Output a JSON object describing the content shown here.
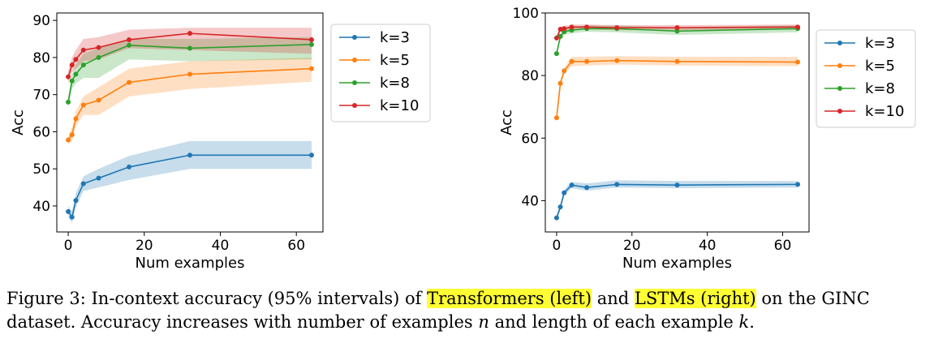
{
  "colors": {
    "k3": "#1f77b4",
    "k5": "#ff7f0e",
    "k8": "#2ca02c",
    "k10": "#d62728",
    "highlight": "#ffff33"
  },
  "chart_data": [
    {
      "type": "line",
      "title": "",
      "xlabel": "Num examples",
      "ylabel": "Acc",
      "xlim": [
        -3,
        67
      ],
      "ylim": [
        33,
        92
      ],
      "xticks": [
        0,
        20,
        40,
        60
      ],
      "yticks": [
        40,
        50,
        60,
        70,
        80,
        90
      ],
      "legend": "top-right",
      "grid": false,
      "series": [
        {
          "name": "k=3",
          "color": "#1f77b4",
          "x": [
            0,
            1,
            2,
            4,
            8,
            16,
            32,
            64
          ],
          "y": [
            38.5,
            37.0,
            41.5,
            46.0,
            47.5,
            50.5,
            53.7,
            53.7
          ],
          "lower": [
            37.0,
            35.5,
            39.5,
            44.0,
            45.0,
            47.0,
            50.0,
            50.0
          ],
          "upper": [
            40.0,
            38.5,
            43.5,
            48.0,
            50.0,
            53.5,
            57.5,
            57.5
          ]
        },
        {
          "name": "k=5",
          "color": "#ff7f0e",
          "x": [
            0,
            1,
            2,
            4,
            8,
            16,
            32,
            64
          ],
          "y": [
            57.8,
            59.2,
            63.5,
            67.2,
            68.5,
            73.3,
            75.5,
            77.0
          ],
          "lower": [
            56.5,
            57.5,
            61.5,
            64.5,
            64.5,
            69.5,
            71.5,
            73.5
          ],
          "upper": [
            59.0,
            61.0,
            65.5,
            69.5,
            72.0,
            77.0,
            79.0,
            80.0
          ]
        },
        {
          "name": "k=8",
          "color": "#2ca02c",
          "x": [
            0,
            1,
            2,
            4,
            8,
            16,
            32,
            64
          ],
          "y": [
            68.0,
            73.7,
            75.5,
            78.0,
            80.0,
            83.3,
            82.5,
            83.5
          ],
          "lower": [
            66.5,
            71.5,
            73.0,
            74.5,
            74.5,
            79.5,
            79.0,
            79.5
          ],
          "upper": [
            69.5,
            75.5,
            78.0,
            81.0,
            82.5,
            85.0,
            85.0,
            85.5
          ]
        },
        {
          "name": "k=10",
          "color": "#d62728",
          "x": [
            0,
            1,
            2,
            4,
            8,
            16,
            32,
            64
          ],
          "y": [
            74.8,
            78.0,
            79.5,
            82.0,
            82.7,
            84.8,
            86.5,
            84.8
          ],
          "lower": [
            73.0,
            76.0,
            77.0,
            79.0,
            79.5,
            82.5,
            82.0,
            81.0
          ],
          "upper": [
            76.5,
            80.0,
            82.0,
            85.0,
            85.5,
            87.5,
            88.0,
            88.0
          ]
        }
      ]
    },
    {
      "type": "line",
      "title": "",
      "xlabel": "Num examples",
      "ylabel": "Acc",
      "xlim": [
        -3,
        67
      ],
      "ylim": [
        30,
        100
      ],
      "xticks": [
        0,
        20,
        40,
        60
      ],
      "yticks": [
        40,
        60,
        80,
        100
      ],
      "legend": "right",
      "grid": false,
      "series": [
        {
          "name": "k=3",
          "color": "#1f77b4",
          "x": [
            0,
            1,
            2,
            4,
            8,
            16,
            32,
            64
          ],
          "y": [
            34.5,
            38.0,
            42.5,
            45.0,
            44.2,
            45.2,
            45.0,
            45.2
          ],
          "lower": [
            33.5,
            37.0,
            41.5,
            44.0,
            43.2,
            44.2,
            44.0,
            44.2
          ],
          "upper": [
            35.5,
            39.0,
            43.5,
            46.0,
            45.5,
            46.5,
            46.3,
            46.3
          ]
        },
        {
          "name": "k=5",
          "color": "#ff7f0e",
          "x": [
            0,
            1,
            2,
            4,
            8,
            16,
            32,
            64
          ],
          "y": [
            66.5,
            77.5,
            81.5,
            84.5,
            84.5,
            84.8,
            84.5,
            84.3
          ],
          "lower": [
            65.5,
            76.5,
            80.5,
            83.0,
            83.2,
            83.5,
            83.2,
            83.0
          ],
          "upper": [
            67.5,
            78.5,
            82.5,
            86.0,
            86.0,
            86.2,
            86.0,
            86.0
          ]
        },
        {
          "name": "k=8",
          "color": "#2ca02c",
          "x": [
            0,
            1,
            2,
            4,
            8,
            16,
            32,
            64
          ],
          "y": [
            87.0,
            92.5,
            94.0,
            94.5,
            95.0,
            95.0,
            94.2,
            95.0
          ],
          "lower": [
            86.0,
            91.5,
            93.0,
            93.5,
            94.0,
            93.8,
            93.0,
            93.8
          ],
          "upper": [
            88.0,
            93.5,
            95.0,
            95.5,
            96.0,
            96.0,
            95.4,
            96.0
          ]
        },
        {
          "name": "k=10",
          "color": "#d62728",
          "x": [
            0,
            1,
            2,
            4,
            8,
            16,
            32,
            64
          ],
          "y": [
            92.0,
            94.8,
            95.0,
            95.5,
            95.5,
            95.3,
            95.3,
            95.5
          ],
          "lower": [
            91.0,
            94.0,
            94.2,
            94.8,
            94.8,
            94.5,
            94.5,
            94.7
          ],
          "upper": [
            93.0,
            95.6,
            95.8,
            96.3,
            96.3,
            96.1,
            96.1,
            96.3
          ]
        }
      ]
    }
  ],
  "caption": {
    "prefix": "Figure 3: In-context accuracy (95% intervals) of ",
    "highlight1": "Transformers (left)",
    "middle": " and ",
    "highlight2": "LSTMs (right)",
    "suffix1": " on the GINC",
    "line2_a": "dataset. Accuracy increases with number of examples ",
    "var_n": "n",
    "line2_b": " and length of each example ",
    "var_k": "k",
    "line2_c": "."
  }
}
